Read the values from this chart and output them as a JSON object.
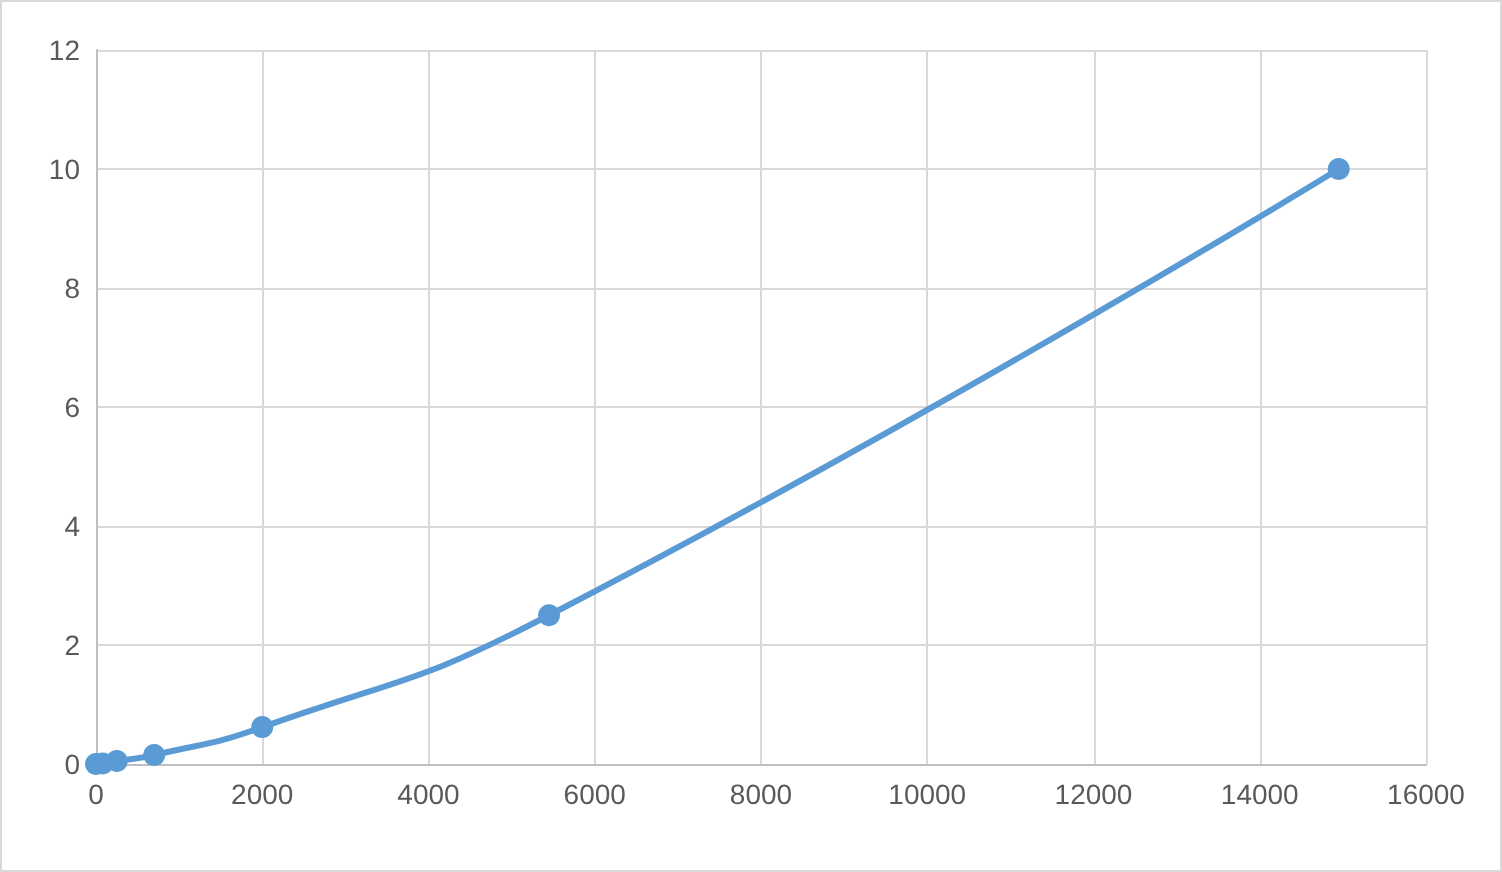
{
  "chart_data": {
    "type": "line",
    "x": [
      0,
      80,
      250,
      700,
      2000,
      5450,
      14950
    ],
    "series": [
      {
        "color": "#5b9bd5",
        "values": [
          0,
          0.01,
          0.05,
          0.15,
          0.62,
          2.5,
          10
        ]
      }
    ],
    "xlim": [
      0,
      16000
    ],
    "xticks": [
      0,
      2000,
      4000,
      6000,
      8000,
      10000,
      12000,
      14000,
      16000
    ],
    "ylim": [
      0,
      12
    ],
    "yticks": [
      0,
      2,
      4,
      6,
      8,
      10,
      12
    ],
    "grid": true,
    "marker": "circle",
    "line_style": "solid"
  }
}
